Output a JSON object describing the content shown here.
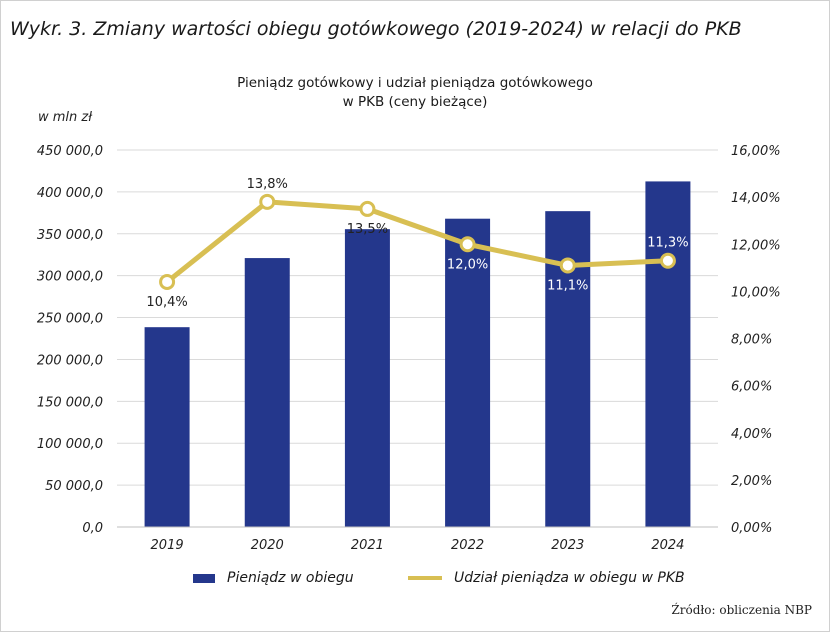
{
  "heading": "Wykr. 3. Zmiany wartości obiegu gotówkowego (2019-2024) w relacji do PKB",
  "source": "Źródło: obliczenia NBP",
  "colors": {
    "bars": "#24378c",
    "line": "#d8bf53",
    "marker_fill": "#ffffff",
    "grid": "#dadada"
  },
  "chart_data": {
    "type": "bar",
    "title_lines": [
      "Pieniądz gotówkowy i udział pieniądza gotówkowego",
      "w PKB (ceny bieżące)"
    ],
    "y_unit_label": "w mln zł",
    "categories": [
      "2019",
      "2020",
      "2021",
      "2022",
      "2023",
      "2024"
    ],
    "series": [
      {
        "name": "Pieniądz w obiegu",
        "type": "bar",
        "axis": "left",
        "values": [
          238500,
          321000,
          355500,
          368000,
          377000,
          412500
        ]
      },
      {
        "name": "Udział pieniądza w obiegu w PKB",
        "type": "line",
        "axis": "right",
        "values": [
          10.4,
          13.8,
          13.5,
          12.0,
          11.1,
          11.3
        ],
        "labels": [
          "10,4%",
          "13,8%",
          "13,5%",
          "12,0%",
          "11,1%",
          "11,3%"
        ]
      }
    ],
    "left_axis": {
      "ylim": [
        0,
        450000
      ],
      "ticks": [
        0,
        50000,
        100000,
        150000,
        200000,
        250000,
        300000,
        350000,
        400000,
        450000
      ],
      "tick_labels": [
        "0,0",
        "50 000,0",
        "100 000,0",
        "150 000,0",
        "200 000,0",
        "250 000,0",
        "300 000,0",
        "350 000,0",
        "400 000,0",
        "450 000,0"
      ]
    },
    "right_axis": {
      "ylim": [
        0,
        16
      ],
      "ticks": [
        0,
        2,
        4,
        6,
        8,
        10,
        12,
        14,
        16
      ],
      "tick_labels": [
        "0,00%",
        "2,00%",
        "4,00%",
        "6,00%",
        "8,00%",
        "10,00%",
        "12,00%",
        "14,00%",
        "16,00%"
      ]
    },
    "grid": true,
    "legend_position": "bottom"
  }
}
